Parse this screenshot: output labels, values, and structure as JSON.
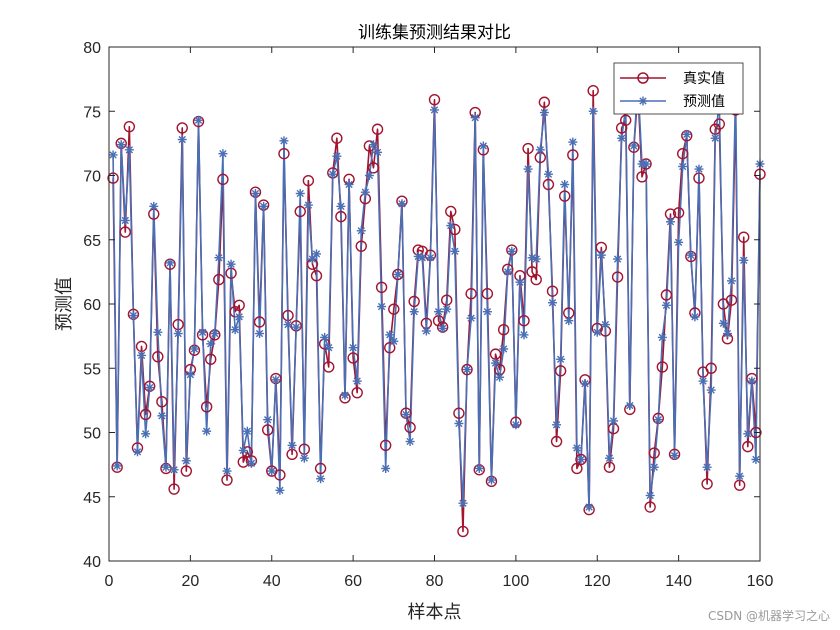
{
  "watermark": "CSDN @机器学习之心",
  "chart_data": {
    "type": "line",
    "title": "训练集预测结果对比",
    "xlabel": "样本点",
    "ylabel": "预测值",
    "xlim": [
      0,
      160
    ],
    "ylim": [
      40,
      80
    ],
    "xticks": [
      0,
      20,
      40,
      60,
      80,
      100,
      120,
      140,
      160
    ],
    "yticks": [
      40,
      45,
      50,
      55,
      60,
      65,
      70,
      75,
      80
    ],
    "grid": false,
    "legend_position": "top-right",
    "x": [
      1,
      2,
      3,
      4,
      5,
      6,
      7,
      8,
      9,
      10,
      11,
      12,
      13,
      14,
      15,
      16,
      17,
      18,
      19,
      20,
      21,
      22,
      23,
      24,
      25,
      26,
      27,
      28,
      29,
      30,
      31,
      32,
      33,
      34,
      35,
      36,
      37,
      38,
      39,
      40,
      41,
      42,
      43,
      44,
      45,
      46,
      47,
      48,
      49,
      50,
      51,
      52,
      53,
      54,
      55,
      56,
      57,
      58,
      59,
      60,
      61,
      62,
      63,
      64,
      65,
      66,
      67,
      68,
      69,
      70,
      71,
      72,
      73,
      74,
      75,
      76,
      77,
      78,
      79,
      80,
      81,
      82,
      83,
      84,
      85,
      86,
      87,
      88,
      89,
      90,
      91,
      92,
      93,
      94,
      95,
      96,
      97,
      98,
      99,
      100,
      101,
      102,
      103,
      104,
      105,
      106,
      107,
      108,
      109,
      110,
      111,
      112,
      113,
      114,
      115,
      116,
      117,
      118,
      119,
      120,
      121,
      122,
      123,
      124,
      125,
      126,
      127,
      128,
      129,
      130,
      131,
      132,
      133,
      134,
      135,
      136,
      137,
      138,
      139,
      140,
      141,
      142,
      143,
      144,
      145,
      146,
      147,
      148,
      149,
      150,
      151,
      152,
      153,
      154,
      155,
      156,
      157,
      158,
      159,
      160
    ],
    "series": [
      {
        "name": "真实值",
        "color": "#A2142F",
        "marker": "circle",
        "values": [
          69.8,
          47.3,
          72.5,
          65.6,
          73.8,
          59.2,
          48.8,
          56.7,
          51.4,
          53.6,
          67.0,
          55.9,
          52.4,
          47.2,
          63.1,
          45.6,
          58.4,
          73.7,
          47.0,
          54.9,
          56.4,
          74.2,
          57.6,
          52.0,
          55.7,
          57.6,
          61.9,
          69.7,
          46.3,
          62.4,
          59.4,
          59.9,
          47.7,
          48.5,
          47.8,
          68.7,
          58.6,
          67.7,
          50.2,
          47.0,
          54.2,
          46.7,
          71.7,
          59.1,
          48.3,
          58.3,
          67.2,
          48.7,
          69.6,
          63.1,
          62.2,
          47.2,
          56.9,
          55.1,
          70.2,
          72.9,
          66.8,
          52.7,
          69.7,
          55.8,
          53.1,
          64.5,
          68.2,
          72.3,
          70.6,
          73.6,
          61.3,
          49.0,
          56.6,
          59.6,
          62.3,
          68.0,
          51.5,
          50.4,
          60.2,
          64.2,
          64.1,
          58.5,
          63.8,
          75.9,
          58.7,
          58.2,
          60.3,
          67.2,
          65.8,
          51.5,
          42.3,
          54.9,
          60.8,
          74.9,
          47.1,
          72.0,
          60.8,
          46.2,
          56.1,
          54.9,
          58.0,
          62.7,
          64.2,
          50.8,
          62.2,
          58.7,
          72.1,
          62.5,
          61.9,
          71.4,
          75.7,
          69.3,
          61.0,
          49.3,
          54.8,
          68.4,
          59.3,
          71.6,
          47.2,
          47.9,
          54.1,
          44.0,
          76.6,
          58.1,
          64.4,
          57.9,
          47.3,
          50.3,
          62.1,
          73.7,
          74.3,
          51.8,
          72.2,
          76.5,
          69.9,
          70.9,
          44.2,
          48.4,
          51.1,
          55.1,
          60.7,
          67.0,
          48.3,
          67.1,
          71.7,
          73.1,
          63.7,
          59.3,
          69.8,
          54.7,
          46.0,
          55.0,
          73.6,
          74.0,
          60.0,
          57.3,
          60.3,
          75.1,
          45.9,
          65.2,
          48.9,
          54.2,
          50.0,
          70.1
        ]
      },
      {
        "name": "预测值",
        "color": "#4A6FB5",
        "marker": "asterisk",
        "values": [
          71.6,
          47.4,
          72.4,
          66.5,
          72.0,
          59.1,
          48.5,
          56.0,
          49.9,
          53.5,
          67.6,
          57.8,
          51.3,
          47.3,
          63.2,
          47.1,
          57.7,
          72.8,
          47.8,
          54.5,
          56.5,
          74.3,
          57.8,
          50.1,
          56.9,
          57.7,
          63.6,
          71.7,
          47.0,
          63.1,
          58.0,
          59.0,
          48.6,
          50.1,
          47.6,
          68.6,
          57.7,
          67.6,
          51.0,
          47.0,
          54.1,
          45.5,
          72.7,
          58.4,
          49.0,
          58.2,
          68.6,
          48.0,
          67.7,
          63.5,
          63.9,
          46.4,
          57.4,
          56.6,
          70.1,
          71.5,
          67.6,
          52.9,
          69.3,
          56.6,
          54.0,
          65.7,
          68.7,
          70.0,
          72.4,
          71.8,
          59.8,
          47.2,
          57.6,
          57.1,
          62.3,
          67.8,
          51.4,
          49.3,
          59.4,
          63.7,
          63.6,
          57.9,
          63.6,
          75.1,
          59.4,
          58.1,
          59.6,
          66.1,
          64.1,
          50.7,
          44.5,
          54.9,
          58.9,
          74.5,
          47.2,
          72.3,
          59.4,
          46.3,
          55.4,
          54.3,
          56.5,
          62.5,
          64.1,
          50.6,
          61.7,
          57.6,
          70.5,
          63.6,
          63.5,
          72.0,
          74.9,
          70.1,
          60.1,
          50.6,
          55.7,
          69.3,
          58.7,
          72.6,
          48.8,
          47.9,
          53.8,
          44.2,
          75.0,
          57.8,
          63.8,
          58.4,
          48.0,
          50.9,
          63.5,
          72.9,
          75.3,
          52.1,
          72.3,
          77.2,
          70.9,
          70.9,
          45.1,
          47.3,
          51.0,
          57.4,
          59.9,
          66.4,
          48.2,
          64.8,
          70.7,
          73.2,
          63.8,
          59.0,
          70.5,
          54.0,
          47.3,
          53.3,
          72.9,
          75.7,
          58.5,
          57.7,
          61.8,
          76.6,
          46.6,
          63.4,
          49.9,
          54.0,
          47.9,
          70.9
        ]
      }
    ]
  }
}
